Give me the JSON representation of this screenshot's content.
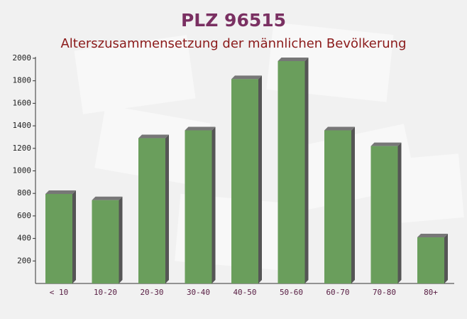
{
  "chart_data": {
    "type": "bar",
    "title": "PLZ 96515",
    "subtitle": "Alterszusammensetzung der männlichen Bevölkerung",
    "categories": [
      "< 10",
      "10-20",
      "20-30",
      "30-40",
      "40-50",
      "50-60",
      "60-70",
      "70-80",
      "80+"
    ],
    "values": [
      795,
      740,
      1290,
      1360,
      1815,
      1975,
      1360,
      1220,
      410
    ],
    "color": "#6a9e5c",
    "ylim": [
      0,
      2000
    ],
    "yticks": [
      200,
      400,
      600,
      800,
      1000,
      1200,
      1400,
      1600,
      1800,
      2000
    ],
    "grid": false
  }
}
